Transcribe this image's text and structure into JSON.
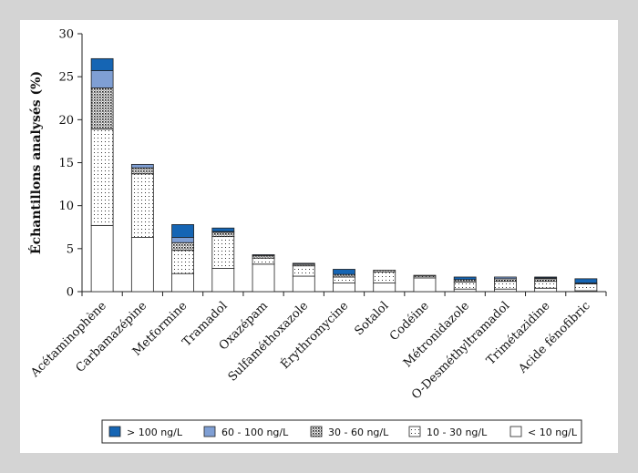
{
  "chart_data": {
    "type": "bar",
    "stacked": true,
    "ylabel": "Échantillons analysés (%)",
    "xlabel": "",
    "ylim": [
      0,
      30
    ],
    "yticks": [
      0,
      5,
      10,
      15,
      20,
      25,
      30
    ],
    "grid": false,
    "legend_position": "bottom",
    "categories": [
      "Acétaminophène",
      "Carbamazépine",
      "Metformine",
      "Tramadol",
      "Oxazépam",
      "Sulfaméthoxazole",
      "Érythromycine",
      "Sotalol",
      "Codéine",
      "Métronidazole",
      "O-Desméthyltramadol",
      "Trimétazidine",
      "Acide fénofibric"
    ],
    "series": [
      {
        "name": "< 10 ng/L",
        "pattern": "blank",
        "color": "#ffffff",
        "values": [
          7.7,
          6.3,
          2.1,
          2.7,
          3.2,
          1.8,
          1.0,
          1.0,
          1.6,
          0.3,
          0.3,
          0.4,
          0.1
        ]
      },
      {
        "name": "10 - 30 ng/L",
        "pattern": "dots-sparse",
        "color": "#ffffff",
        "values": [
          11.2,
          7.4,
          2.7,
          3.7,
          0.7,
          1.2,
          0.7,
          1.3,
          0.2,
          0.8,
          0.9,
          0.8,
          0.8
        ]
      },
      {
        "name": "30 - 60 ng/L",
        "pattern": "dots-dense",
        "color": "#ffffff",
        "values": [
          4.8,
          0.7,
          0.9,
          0.5,
          0.3,
          0.2,
          0.3,
          0.2,
          0.1,
          0.3,
          0.3,
          0.3,
          0.1
        ]
      },
      {
        "name": "60 - 100 ng/L",
        "pattern": "solid",
        "color": "#7f9fd4",
        "values": [
          2.0,
          0.4,
          0.6,
          0.1,
          0.1,
          0.1,
          0.0,
          0.0,
          0.0,
          0.0,
          0.2,
          0.1,
          0.0
        ]
      },
      {
        "name": "> 100 ng/L",
        "pattern": "solid",
        "color": "#1565b4",
        "values": [
          1.4,
          0.0,
          1.5,
          0.4,
          0.0,
          0.0,
          0.6,
          0.0,
          0.0,
          0.3,
          0.0,
          0.1,
          0.5
        ]
      }
    ],
    "legend_order": [
      "> 100 ng/L",
      "60 - 100 ng/L",
      "30 - 60 ng/L",
      "10 - 30 ng/L",
      "< 10 ng/L"
    ]
  }
}
